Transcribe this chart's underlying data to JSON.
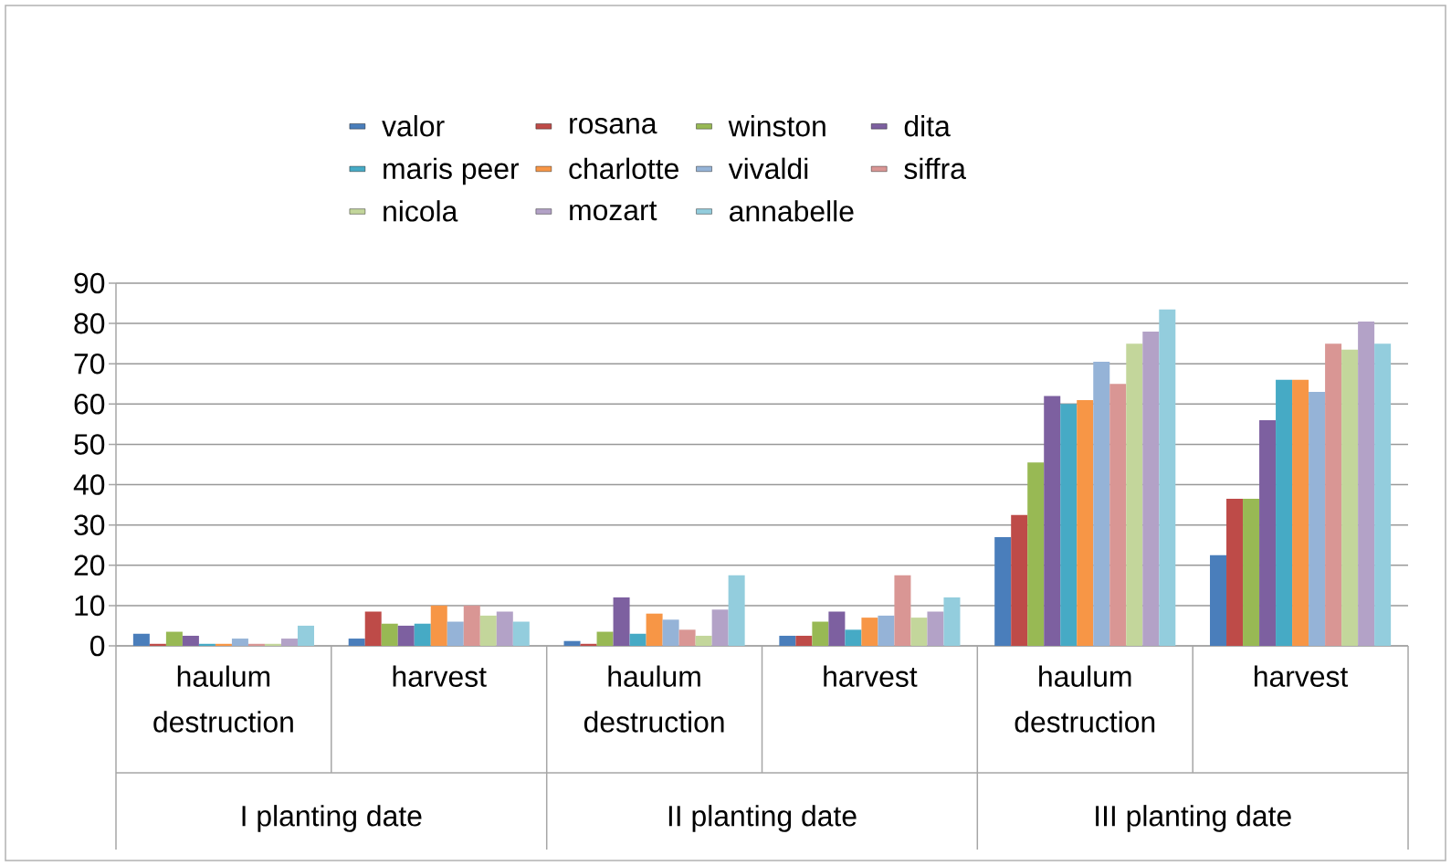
{
  "chart_data": {
    "type": "bar",
    "categories": [
      "haulum destruction",
      "harvest",
      "haulum destruction",
      "harvest",
      "haulum destruction",
      "harvest"
    ],
    "annotations": [
      "I planting date",
      "II planting date",
      "III planting date"
    ],
    "series": [
      {
        "name": "valor",
        "color": "#4a7ebb",
        "values": [
          3,
          1.8,
          1.2,
          2.5,
          27,
          22.5
        ]
      },
      {
        "name": "rosana",
        "color": "#be4b48",
        "values": [
          0.5,
          8.5,
          0.5,
          2.5,
          32.5,
          36.5
        ]
      },
      {
        "name": "winston",
        "color": "#98b954",
        "values": [
          3.5,
          5.5,
          3.5,
          6,
          45.5,
          36.5
        ]
      },
      {
        "name": "dita",
        "color": "#7d60a0",
        "values": [
          2.5,
          5,
          12,
          8.5,
          62,
          56
        ]
      },
      {
        "name": "maris peer",
        "color": "#46aac5",
        "values": [
          0.5,
          5.5,
          3,
          4,
          60,
          66
        ]
      },
      {
        "name": "charlotte",
        "color": "#f79646",
        "values": [
          0.5,
          10,
          8,
          7,
          61,
          66
        ]
      },
      {
        "name": "vivaldi",
        "color": "#95b3d7",
        "values": [
          1.8,
          6,
          6.5,
          7.5,
          70.5,
          63
        ]
      },
      {
        "name": "siffra",
        "color": "#d99694",
        "values": [
          0.5,
          10,
          4,
          17.5,
          65,
          75
        ]
      },
      {
        "name": "nicola",
        "color": "#c3d69b",
        "values": [
          0.5,
          7.5,
          2.5,
          7,
          75,
          73.5
        ]
      },
      {
        "name": "mozart",
        "color": "#b3a2c7",
        "values": [
          1.8,
          8.5,
          9,
          8.5,
          78,
          80.5
        ]
      },
      {
        "name": "annabelle",
        "color": "#93cddd",
        "values": [
          5,
          6,
          17.5,
          12,
          83.5,
          75
        ]
      }
    ],
    "ylim": [
      0,
      90
    ],
    "yticks": [
      0,
      10,
      20,
      30,
      40,
      50,
      60,
      70,
      80,
      90
    ],
    "grid": "y",
    "legend": "top"
  }
}
